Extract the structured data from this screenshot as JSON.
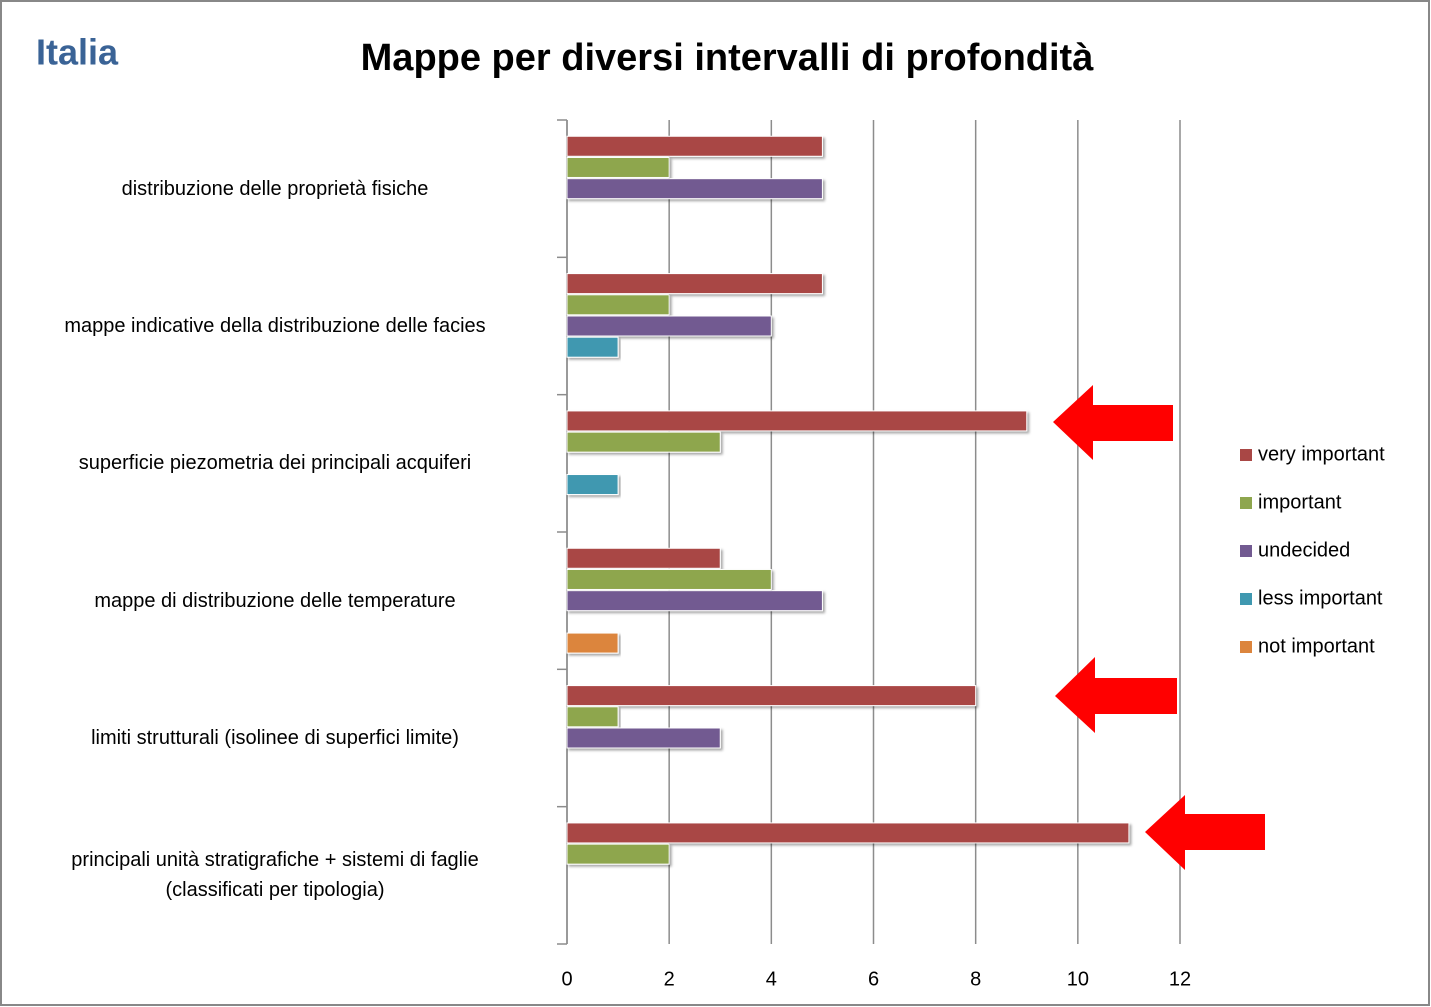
{
  "header": {
    "region": "Italia"
  },
  "chart_data": {
    "type": "barh",
    "title": "Mappe per diversi intervalli di profondità",
    "categories": [
      "distribuzione delle proprietà fisiche",
      "mappe indicative della distribuzione delle facies",
      "superficie piezometria dei principali acquiferi",
      "mappe di distribuzione delle temperature",
      "limiti strutturali (isolinee di superfici limite)",
      "principali unità stratigrafiche + sistemi di faglie\n(classificati per tipologia)"
    ],
    "series": [
      {
        "name": "very important",
        "color": "#a94745",
        "values": [
          5,
          5,
          9,
          3,
          8,
          11
        ]
      },
      {
        "name": "important",
        "color": "#8ea64e",
        "values": [
          2,
          2,
          3,
          4,
          1,
          2
        ]
      },
      {
        "name": "undecided",
        "color": "#725a91",
        "values": [
          5,
          4,
          null,
          5,
          3,
          null
        ]
      },
      {
        "name": "less important",
        "color": "#3f98b0",
        "values": [
          null,
          1,
          1,
          null,
          null,
          null
        ]
      },
      {
        "name": "not important",
        "color": "#dc853d",
        "values": [
          null,
          null,
          null,
          1,
          null,
          null
        ]
      }
    ],
    "xlim": [
      0,
      12
    ],
    "xticks": [
      0,
      2,
      4,
      6,
      8,
      10,
      12
    ],
    "grid": true,
    "legend": "right"
  }
}
